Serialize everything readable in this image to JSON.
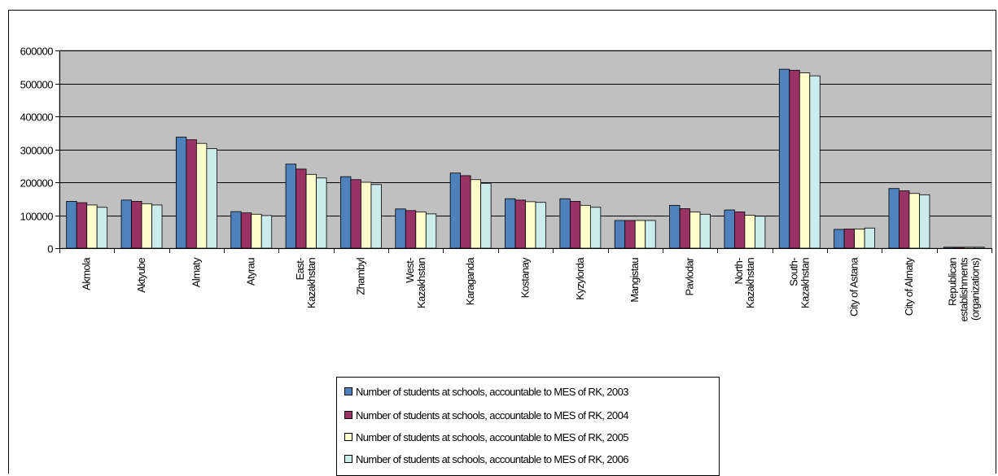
{
  "chart_data": {
    "type": "bar",
    "title": "",
    "xlabel": "",
    "ylabel": "",
    "ylim": [
      0,
      600000
    ],
    "yticks": [
      0,
      100000,
      200000,
      300000,
      400000,
      500000,
      600000
    ],
    "grid": true,
    "plot_background": "#c0c0c0",
    "legend_position": "bottom",
    "categories": [
      "Akmola",
      "Aktyube",
      "Almaty",
      "Atyrau",
      "East-Kazakhstan",
      "Zhambyl",
      "West-Kazakhstan",
      "Karaganda",
      "Kostanay",
      "Kyzylorda",
      "Mangistau",
      "Pavlodar",
      "North-Kazakhstan",
      "South-Kazakhstan",
      "City of Astana",
      "City of Almaty",
      "Republican establishments (organizations)"
    ],
    "category_label_lines": [
      [
        "Akmola"
      ],
      [
        "Aktyube"
      ],
      [
        "Almaty"
      ],
      [
        "Atyrau"
      ],
      [
        "East-",
        "Kazakhstan"
      ],
      [
        "Zhambyl"
      ],
      [
        "West-",
        "Kazakhstan"
      ],
      [
        "Karaganda"
      ],
      [
        "Kostanay"
      ],
      [
        "Kyzylorda"
      ],
      [
        "Mangistau"
      ],
      [
        "Pavlodar"
      ],
      [
        "North-",
        "Kazakhstan"
      ],
      [
        "South-",
        "Kazakhstan"
      ],
      [
        "City of Astana"
      ],
      [
        "City of Almaty"
      ],
      [
        "Republican",
        "establishments",
        "(organizations)"
      ]
    ],
    "series": [
      {
        "name": "Number of students at schools, accountable to MES of RK, 2003",
        "color": "#4f81bd",
        "values": [
          142000,
          146000,
          337000,
          111000,
          255000,
          217000,
          119000,
          228000,
          150000,
          150000,
          84000,
          130000,
          116000,
          543000,
          57000,
          181000,
          3000
        ]
      },
      {
        "name": "Number of students at schools, accountable to MES of RK, 2004",
        "color": "#993366",
        "values": [
          138000,
          142000,
          329000,
          107000,
          240000,
          208000,
          114000,
          220000,
          146000,
          142000,
          84000,
          120000,
          110000,
          540000,
          58000,
          174000,
          3000
        ]
      },
      {
        "name": "Number of students at schools, accountable to MES of RK, 2005",
        "color": "#ffffcc",
        "values": [
          131000,
          135000,
          318000,
          103000,
          224000,
          200000,
          110000,
          208000,
          141000,
          130000,
          84000,
          110000,
          100000,
          532000,
          58000,
          166000,
          3000
        ]
      },
      {
        "name": "Number of students at schools, accountable to MES of RK, 2006",
        "color": "#ccecec",
        "values": [
          124000,
          131000,
          302000,
          99000,
          213000,
          193000,
          104000,
          197000,
          139000,
          124000,
          84000,
          103000,
          97000,
          523000,
          61000,
          162000,
          3000
        ]
      }
    ]
  }
}
